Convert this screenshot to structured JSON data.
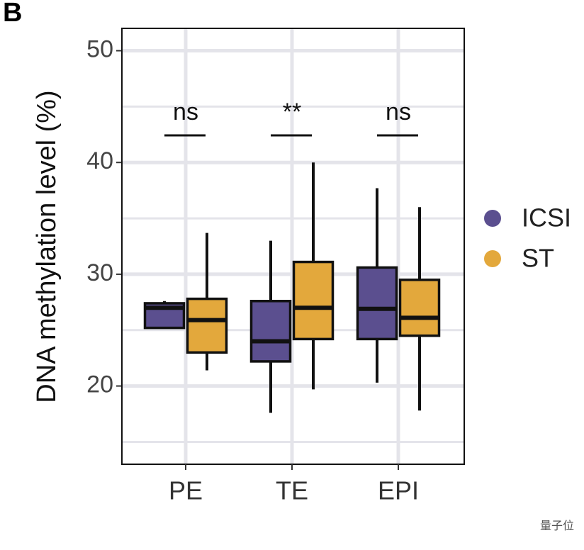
{
  "chart_data": {
    "type": "box",
    "panel_label": "B",
    "ylabel": "DNA methylation level (%)",
    "categories": [
      "PE",
      "TE",
      "EPI"
    ],
    "series": [
      {
        "name": "ICSI",
        "color": "#5b4f8f",
        "values": [
          {
            "min": 25.2,
            "q1": 25.2,
            "median": 27.0,
            "q3": 27.4,
            "max": 27.6
          },
          {
            "min": 17.6,
            "q1": 22.2,
            "median": 24.0,
            "q3": 27.6,
            "max": 33.0
          },
          {
            "min": 20.3,
            "q1": 24.2,
            "median": 26.9,
            "q3": 30.6,
            "max": 37.7
          }
        ]
      },
      {
        "name": "ST",
        "color": "#e3a83c",
        "values": [
          {
            "min": 21.4,
            "q1": 23.0,
            "median": 25.9,
            "q3": 27.8,
            "max": 33.7
          },
          {
            "min": 19.7,
            "q1": 24.2,
            "median": 27.0,
            "q3": 31.1,
            "max": 40.0
          },
          {
            "min": 17.8,
            "q1": 24.5,
            "median": 26.1,
            "q3": 29.5,
            "max": 36.0
          }
        ]
      }
    ],
    "annotations": [
      "ns",
      "**",
      "ns"
    ],
    "ylim": [
      13,
      52
    ],
    "yticks": [
      20,
      30,
      40,
      50
    ],
    "minor_yticks": [
      15,
      25,
      35,
      45
    ],
    "grid": true,
    "legend": "right",
    "watermark": "量子位"
  }
}
